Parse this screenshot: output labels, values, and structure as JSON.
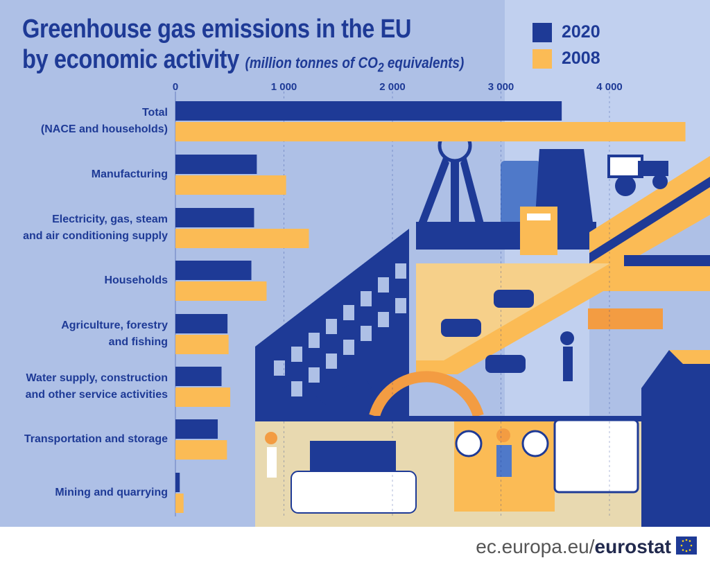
{
  "header": {
    "title_line1": "Greenhouse gas emissions in the EU",
    "title_line2": "by economic activity",
    "subtitle_pre": "(million tonnes of CO",
    "subtitle_sub": "2",
    "subtitle_post": " equivalents)"
  },
  "colors": {
    "series_2020": "#1e3a96",
    "series_2008": "#fbbb55",
    "chart_background": "#aec0e6",
    "text": "#1e3a96"
  },
  "chart_data": {
    "type": "bar",
    "orientation": "horizontal",
    "categories": [
      "Total\n(NACE and households)",
      "Manufacturing",
      "Electricity, gas, steam\nand air conditioning supply",
      "Households",
      "Agriculture, forestry\nand fishing",
      "Water supply, construction\nand other service activities",
      "Transportation and storage",
      "Mining and quarrying"
    ],
    "series": [
      {
        "name": "2020",
        "values": [
          3560,
          750,
          725,
          700,
          480,
          425,
          390,
          40
        ]
      },
      {
        "name": "2008",
        "values": [
          4700,
          1020,
          1230,
          840,
          490,
          505,
          475,
          75
        ]
      }
    ],
    "xlim": [
      0,
      4800
    ],
    "xticks": [
      0,
      1000,
      2000,
      3000,
      4000
    ],
    "xtick_labels": [
      "0",
      "1 000",
      "2 000",
      "3 000",
      "4 000"
    ],
    "grid": true,
    "legend_position": "top-right"
  },
  "footer": {
    "source_prefix": "ec.europa.eu/",
    "source_brand": "eurostat"
  }
}
